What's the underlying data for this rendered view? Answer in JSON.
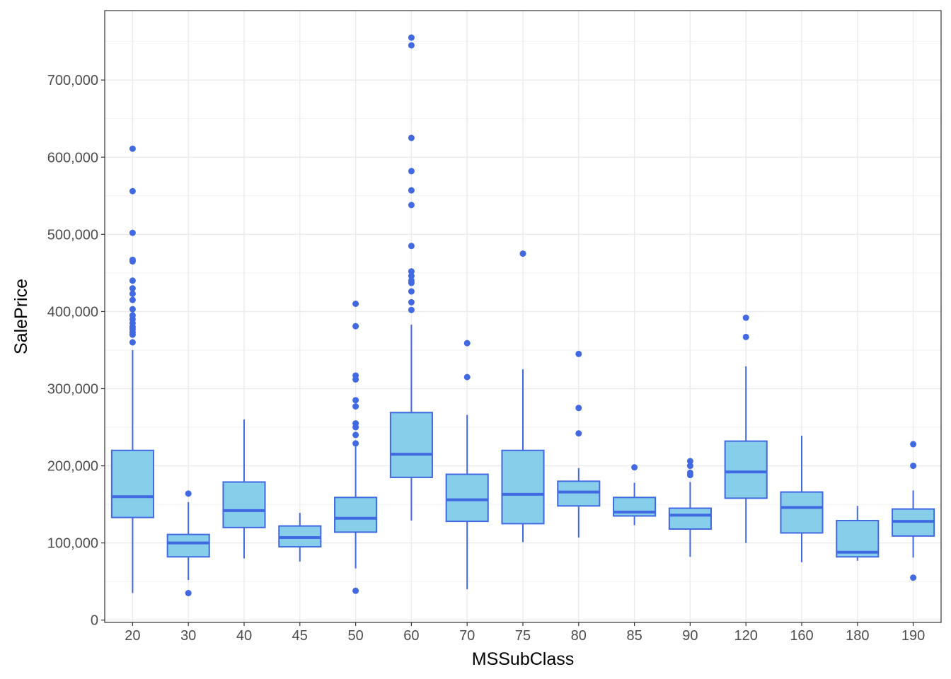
{
  "chart_data": {
    "type": "boxplot",
    "title": "",
    "xlabel": "MSSubClass",
    "ylabel": "SalePrice",
    "ylim": [
      -3000,
      790000
    ],
    "y_ticks": [
      0,
      100000,
      200000,
      300000,
      400000,
      500000,
      600000,
      700000
    ],
    "y_tick_labels": [
      "0",
      "100,000",
      "200,000",
      "300,000",
      "400,000",
      "500,000",
      "600,000",
      "700,000"
    ],
    "colors": {
      "box_fill": "#87ceeb",
      "box_line": "#4169e1",
      "grid": "#ebebeb",
      "panel_border": "#333333"
    },
    "categories": [
      "20",
      "30",
      "40",
      "45",
      "50",
      "60",
      "70",
      "75",
      "80",
      "85",
      "90",
      "120",
      "160",
      "180",
      "190"
    ],
    "boxes": [
      {
        "category": "20",
        "whisker_low": 35000,
        "q1": 133000,
        "median": 160000,
        "q3": 220000,
        "whisker_high": 350000,
        "outliers": [
          360000,
          370000,
          373000,
          377000,
          380000,
          385000,
          390000,
          395000,
          403000,
          415000,
          423000,
          430000,
          440000,
          465000,
          467000,
          502000,
          556000,
          611000
        ]
      },
      {
        "category": "30",
        "whisker_low": 52000,
        "q1": 82000,
        "median": 100000,
        "q3": 111000,
        "whisker_high": 153000,
        "outliers": [
          35000,
          164000
        ]
      },
      {
        "category": "40",
        "whisker_low": 80000,
        "q1": 120000,
        "median": 142000,
        "q3": 179000,
        "whisker_high": 260000,
        "outliers": []
      },
      {
        "category": "45",
        "whisker_low": 76000,
        "q1": 95000,
        "median": 107000,
        "q3": 122000,
        "whisker_high": 139000,
        "outliers": []
      },
      {
        "category": "50",
        "whisker_low": 67000,
        "q1": 114000,
        "median": 132000,
        "q3": 159000,
        "whisker_high": 225000,
        "outliers": [
          38000,
          229000,
          240000,
          250000,
          255000,
          277000,
          285000,
          312000,
          317000,
          381000,
          410000
        ]
      },
      {
        "category": "60",
        "whisker_low": 129000,
        "q1": 185000,
        "median": 215000,
        "q3": 269000,
        "whisker_high": 383000,
        "outliers": [
          402000,
          412000,
          426000,
          437000,
          440000,
          446000,
          452000,
          485000,
          538000,
          557000,
          582000,
          625000,
          745000,
          755000
        ]
      },
      {
        "category": "70",
        "whisker_low": 40000,
        "q1": 128000,
        "median": 156000,
        "q3": 189000,
        "whisker_high": 266000,
        "outliers": [
          315000,
          359000
        ]
      },
      {
        "category": "75",
        "whisker_low": 101000,
        "q1": 125000,
        "median": 163000,
        "q3": 220000,
        "whisker_high": 325000,
        "outliers": [
          475000
        ]
      },
      {
        "category": "80",
        "whisker_low": 107000,
        "q1": 148000,
        "median": 166000,
        "q3": 180000,
        "whisker_high": 197000,
        "outliers": [
          242000,
          275000,
          345000
        ]
      },
      {
        "category": "85",
        "whisker_low": 123000,
        "q1": 135000,
        "median": 140000,
        "q3": 159000,
        "whisker_high": 178000,
        "outliers": [
          198000
        ]
      },
      {
        "category": "90",
        "whisker_low": 82000,
        "q1": 118000,
        "median": 136000,
        "q3": 145000,
        "whisker_high": 179000,
        "outliers": [
          188000,
          191000,
          200000,
          206000
        ]
      },
      {
        "category": "120",
        "whisker_low": 100000,
        "q1": 158000,
        "median": 192000,
        "q3": 232000,
        "whisker_high": 329000,
        "outliers": [
          367000,
          392000
        ]
      },
      {
        "category": "160",
        "whisker_low": 75000,
        "q1": 113000,
        "median": 146000,
        "q3": 166000,
        "whisker_high": 239000,
        "outliers": []
      },
      {
        "category": "180",
        "whisker_low": 77000,
        "q1": 82000,
        "median": 88000,
        "q3": 129000,
        "whisker_high": 148000,
        "outliers": []
      },
      {
        "category": "190",
        "whisker_low": 81000,
        "q1": 109000,
        "median": 128000,
        "q3": 144000,
        "whisker_high": 168000,
        "outliers": [
          55000,
          200000,
          228000
        ]
      }
    ]
  }
}
